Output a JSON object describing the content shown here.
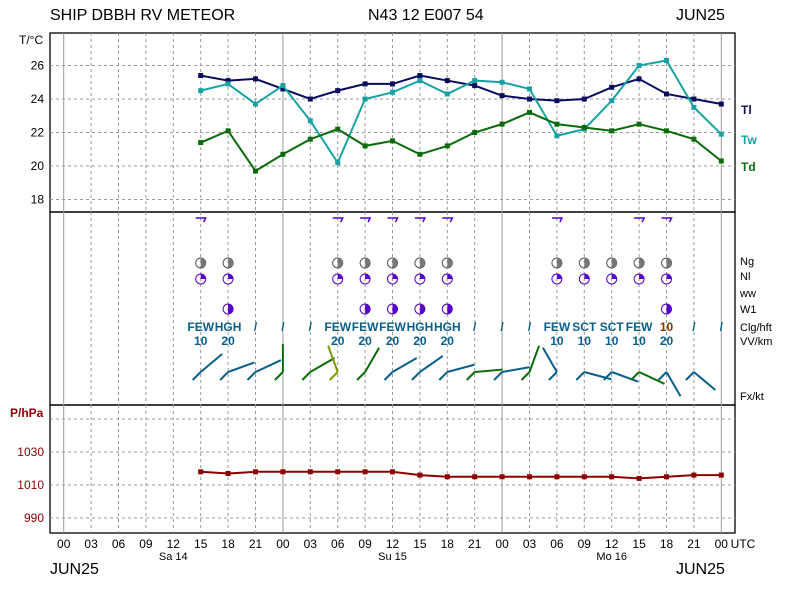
{
  "header": {
    "station": "SHIP DBBH RV METEOR",
    "position": "N43 12 E007 54",
    "month_right": "JUN25"
  },
  "footer": {
    "month_left": "JUN25",
    "month_right": "JUN25"
  },
  "colors": {
    "tl": "#0a0a5e",
    "tw": "#17a3a3",
    "td": "#0a6b0a",
    "pressure": "#8b0000",
    "cloud": "#0a5f8a",
    "sym": "#5500cc"
  },
  "chart_data": [
    {
      "type": "line",
      "title": "",
      "ylabel": "T/°C",
      "ylim": [
        17,
        28
      ],
      "yticks": [
        "26",
        "24",
        "22",
        "20",
        "18"
      ],
      "x_hours_from_00utc_sa14": [
        15,
        18,
        21,
        24,
        27,
        30,
        33,
        36,
        39,
        42,
        45,
        48,
        51,
        54,
        57,
        60,
        63,
        66,
        69,
        72
      ],
      "series": [
        {
          "name": "Tl",
          "color": "#0a0a5e",
          "values": [
            25.4,
            25.1,
            25.2,
            24.6,
            24.0,
            24.5,
            24.9,
            24.9,
            25.4,
            25.1,
            24.8,
            24.2,
            24.0,
            23.9,
            24.0,
            24.7,
            25.2,
            24.3,
            24.0,
            23.7
          ]
        },
        {
          "name": "Tw",
          "color": "#17a3a3",
          "values": [
            24.5,
            24.9,
            23.7,
            24.8,
            22.7,
            20.2,
            24.0,
            24.4,
            25.1,
            24.3,
            25.1,
            25.0,
            24.6,
            21.8,
            22.2,
            23.9,
            26.0,
            26.3,
            23.5,
            21.9
          ]
        },
        {
          "name": "Td",
          "color": "#0a6b0a",
          "values": [
            21.4,
            22.1,
            19.7,
            20.7,
            21.6,
            22.2,
            21.2,
            21.5,
            20.7,
            21.2,
            22.0,
            22.5,
            23.2,
            22.5,
            22.3,
            22.1,
            22.5,
            22.1,
            21.6,
            20.3
          ]
        }
      ]
    },
    {
      "type": "line",
      "title": "",
      "ylabel": "P/hPa",
      "ylim": [
        980,
        1050
      ],
      "yticks": [
        "1030",
        "1010",
        "990"
      ],
      "x_hours_from_00utc_sa14": [
        15,
        18,
        21,
        24,
        27,
        30,
        33,
        36,
        39,
        42,
        45,
        48,
        51,
        54,
        57,
        60,
        63,
        66,
        69,
        72
      ],
      "series": [
        {
          "name": "",
          "color": "#8b0000",
          "values": [
            1018,
            1017,
            1018,
            1018,
            1018,
            1018,
            1018,
            1018,
            1016,
            1015,
            1015,
            1015,
            1015,
            1015,
            1015,
            1015,
            1014,
            1015,
            1016,
            1016
          ]
        }
      ]
    }
  ],
  "rows": {
    "labels": [
      "Ng",
      "Nl",
      "ww",
      "W1",
      "Clg/hft",
      "VV/km",
      "Fx/kt"
    ],
    "clouds": [
      {
        "h": 15,
        "c": "FEW",
        "v": "10"
      },
      {
        "h": 18,
        "c": "HGH",
        "v": "20"
      },
      {
        "h": 21,
        "c": "/"
      },
      {
        "h": 24,
        "c": "/"
      },
      {
        "h": 27,
        "c": "/"
      },
      {
        "h": 30,
        "c": "FEW",
        "v": "20"
      },
      {
        "h": 33,
        "c": "FEW",
        "v": "20"
      },
      {
        "h": 36,
        "c": "FEW",
        "v": "20"
      },
      {
        "h": 39,
        "c": "HGH",
        "v": "20"
      },
      {
        "h": 42,
        "c": "HGH",
        "v": "20"
      },
      {
        "h": 45,
        "c": "/"
      },
      {
        "h": 48,
        "c": "/"
      },
      {
        "h": 51,
        "c": "/"
      },
      {
        "h": 54,
        "c": "FEW",
        "v": "10"
      },
      {
        "h": 57,
        "c": "SCT",
        "v": "10"
      },
      {
        "h": 60,
        "c": "SCT",
        "v": "10"
      },
      {
        "h": 63,
        "c": "FEW",
        "v": "10"
      },
      {
        "h": 66,
        "c": "10",
        "v": "20",
        "brown": true
      },
      {
        "h": 69,
        "c": "/"
      },
      {
        "h": 72,
        "c": "/"
      }
    ]
  },
  "axis": {
    "hours": [
      "00",
      "03",
      "06",
      "09",
      "12",
      "15",
      "18",
      "21",
      "00",
      "03",
      "06",
      "09",
      "12",
      "15",
      "18",
      "21",
      "00",
      "03",
      "06",
      "09",
      "12",
      "15",
      "18",
      "21",
      "00"
    ],
    "utc": "UTC",
    "days": [
      {
        "label": "Sa 14",
        "h": 12
      },
      {
        "label": "Su 15",
        "h": 36
      },
      {
        "label": "Mo 16",
        "h": 60
      }
    ]
  }
}
